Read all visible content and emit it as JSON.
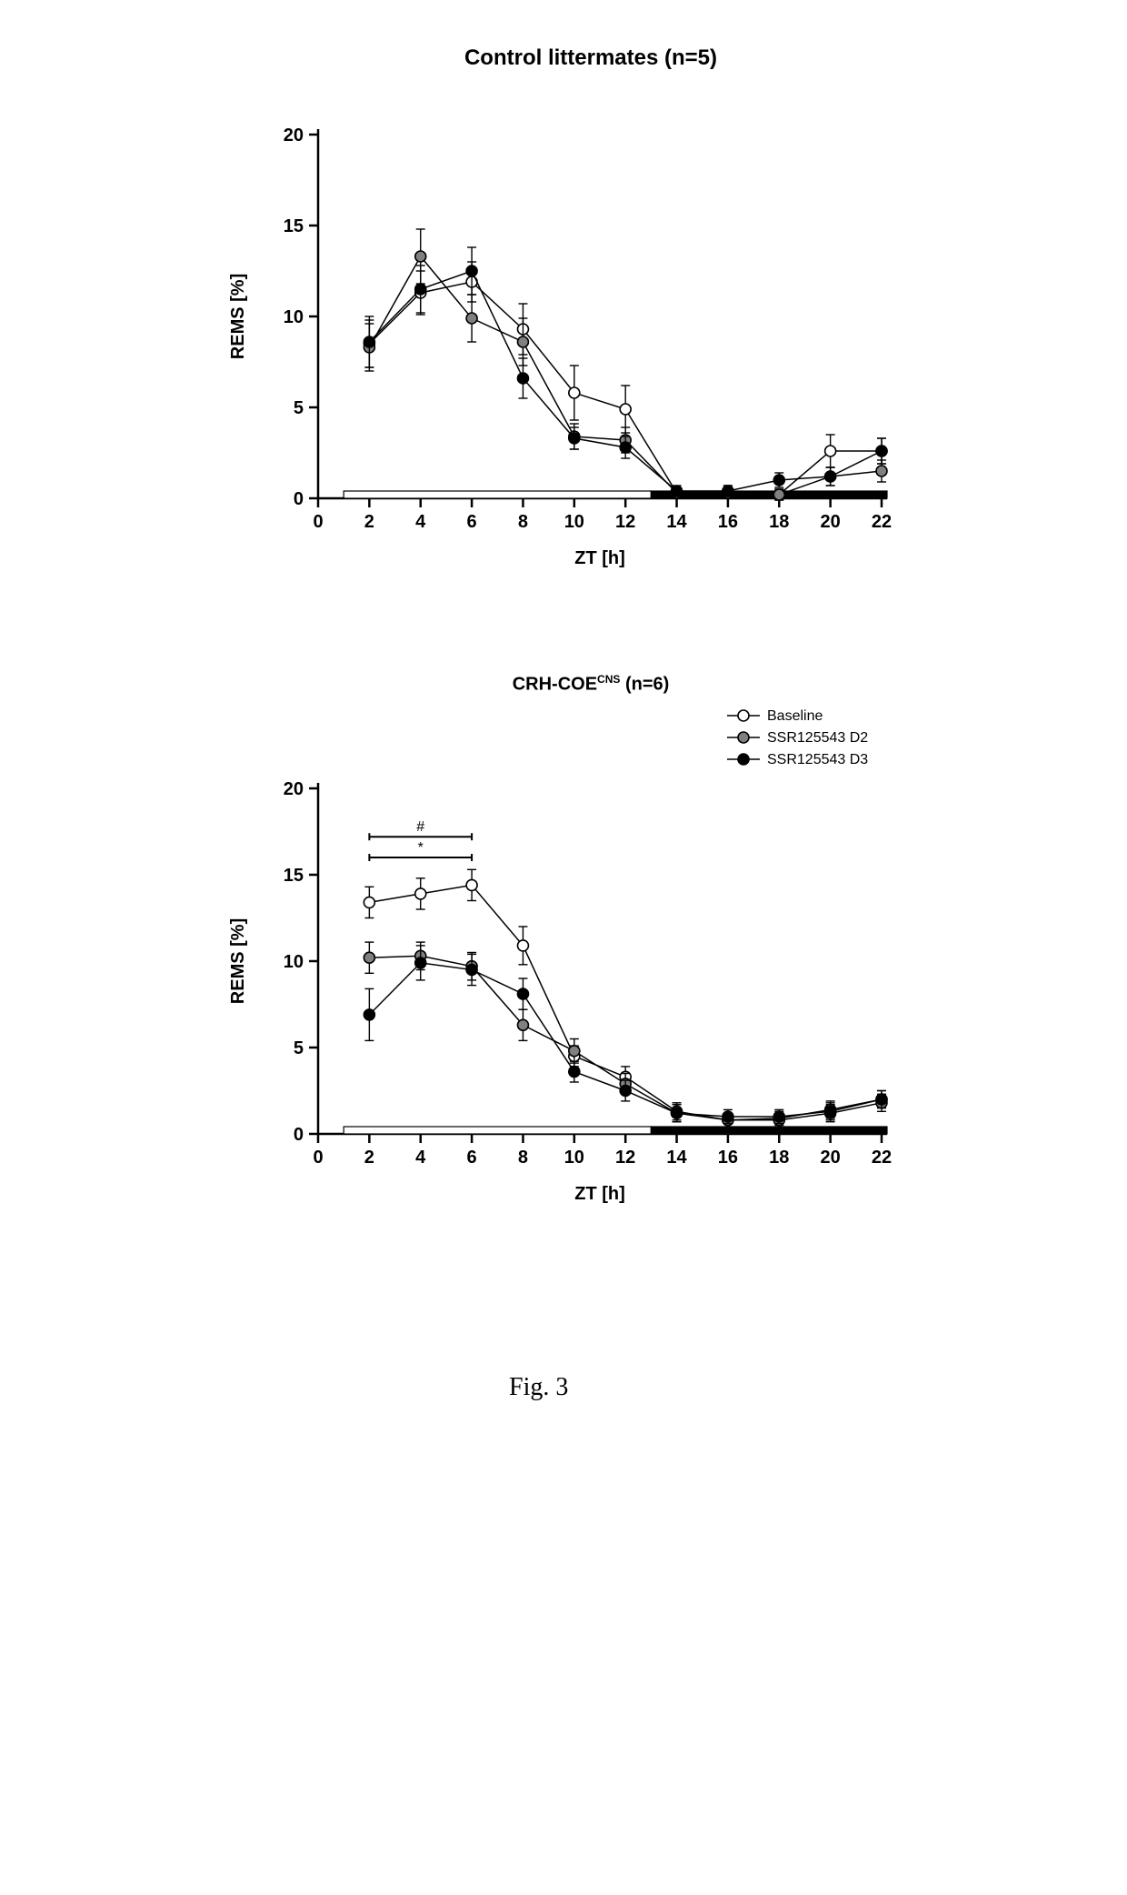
{
  "chart_top": {
    "title": "Control littermates (n=5)",
    "title_fontsize": 24,
    "title_fontweight": "bold",
    "type": "line_scatter_errorbar",
    "xlabel": "ZT [h]",
    "ylabel": "REMS [%]",
    "label_fontsize": 20,
    "label_fontweight": "bold",
    "tick_fontsize": 20,
    "tick_fontweight": "bold",
    "xlim": [
      0,
      22
    ],
    "ylim": [
      0,
      20
    ],
    "xticks": [
      0,
      2,
      4,
      6,
      8,
      10,
      12,
      14,
      16,
      18,
      20,
      22
    ],
    "yticks": [
      0,
      5,
      10,
      15,
      20
    ],
    "background_color": "#ffffff",
    "axis_color": "#000000",
    "line_width": 1.5,
    "marker_size": 6,
    "light_dark_bar": {
      "light_start": 1,
      "light_end": 13,
      "dark_end": 23
    },
    "series": [
      {
        "name": "Baseline",
        "color": "#000000",
        "fill": "#ffffff",
        "x": [
          2,
          4,
          6,
          8,
          10,
          12,
          14,
          16,
          18,
          20,
          22
        ],
        "y": [
          8.5,
          11.3,
          11.9,
          9.3,
          5.8,
          4.9,
          0.3,
          0.4,
          0.2,
          2.6,
          2.6
        ],
        "err": [
          1.3,
          1.2,
          1.1,
          1.4,
          1.5,
          1.3,
          0.3,
          0.3,
          0.3,
          0.9,
          0.7
        ]
      },
      {
        "name": "SSR125543 D2",
        "color": "#000000",
        "fill": "#808080",
        "x": [
          2,
          4,
          6,
          8,
          10,
          12,
          14,
          16,
          18,
          20,
          22
        ],
        "y": [
          8.3,
          13.3,
          9.9,
          8.6,
          3.4,
          3.2,
          0.3,
          0.3,
          0.2,
          1.2,
          1.5
        ],
        "err": [
          1.3,
          1.5,
          1.3,
          1.3,
          0.7,
          0.7,
          0.3,
          0.3,
          0.3,
          0.5,
          0.6
        ]
      },
      {
        "name": "SSR125543 D3",
        "color": "#000000",
        "fill": "#000000",
        "x": [
          2,
          4,
          6,
          8,
          10,
          12,
          14,
          16,
          18,
          20,
          22
        ],
        "y": [
          8.6,
          11.5,
          12.5,
          6.6,
          3.3,
          2.8,
          0.4,
          0.4,
          1.0,
          1.2,
          2.6
        ],
        "err": [
          1.4,
          1.3,
          1.3,
          1.1,
          0.6,
          0.6,
          0.3,
          0.3,
          0.4,
          0.5,
          0.7
        ]
      }
    ]
  },
  "chart_bottom": {
    "title": "CRH-COE",
    "title_super": "CNS",
    "title_suffix": " (n=6)",
    "title_fontsize": 20,
    "title_fontweight": "bold",
    "type": "line_scatter_errorbar",
    "xlabel": "ZT [h]",
    "ylabel": "REMS [%]",
    "label_fontsize": 20,
    "label_fontweight": "bold",
    "tick_fontsize": 20,
    "tick_fontweight": "bold",
    "xlim": [
      0,
      22
    ],
    "ylim": [
      0,
      20
    ],
    "xticks": [
      0,
      2,
      4,
      6,
      8,
      10,
      12,
      14,
      16,
      18,
      20,
      22
    ],
    "yticks": [
      0,
      5,
      10,
      15,
      20
    ],
    "background_color": "#ffffff",
    "axis_color": "#000000",
    "line_width": 1.5,
    "marker_size": 6,
    "light_dark_bar": {
      "light_start": 1,
      "light_end": 13,
      "dark_end": 23
    },
    "legend": {
      "position": "top-right",
      "fontsize": 16,
      "items": [
        {
          "label": "Baseline",
          "fill": "#ffffff",
          "stroke": "#000000"
        },
        {
          "label": "SSR125543 D2",
          "fill": "#808080",
          "stroke": "#000000"
        },
        {
          "label": "SSR125543 D3",
          "fill": "#000000",
          "stroke": "#000000"
        }
      ]
    },
    "significance": [
      {
        "symbol": "#",
        "x_start": 2,
        "x_end": 6,
        "y": 17.2,
        "symbol_offset_x": -30
      },
      {
        "symbol": "*",
        "x_start": 2,
        "x_end": 6,
        "y": 16.0,
        "symbol_offset_x": -30
      }
    ],
    "series": [
      {
        "name": "Baseline",
        "color": "#000000",
        "fill": "#ffffff",
        "x": [
          2,
          4,
          6,
          8,
          10,
          12,
          14,
          16,
          18,
          20,
          22
        ],
        "y": [
          13.4,
          13.9,
          14.4,
          10.9,
          4.5,
          3.3,
          1.3,
          0.8,
          0.9,
          1.4,
          2.0
        ],
        "err": [
          0.9,
          0.9,
          0.9,
          1.1,
          0.6,
          0.6,
          0.5,
          0.4,
          0.4,
          0.5,
          0.5
        ]
      },
      {
        "name": "SSR125543 D2",
        "color": "#000000",
        "fill": "#808080",
        "x": [
          2,
          4,
          6,
          8,
          10,
          12,
          14,
          16,
          18,
          20,
          22
        ],
        "y": [
          10.2,
          10.3,
          9.7,
          6.3,
          4.8,
          2.9,
          1.2,
          0.8,
          0.8,
          1.2,
          1.8
        ],
        "err": [
          0.9,
          0.8,
          0.8,
          0.9,
          0.7,
          0.6,
          0.5,
          0.4,
          0.4,
          0.5,
          0.5
        ]
      },
      {
        "name": "SSR125543 D3",
        "color": "#000000",
        "fill": "#000000",
        "x": [
          2,
          4,
          6,
          8,
          10,
          12,
          14,
          16,
          18,
          20,
          22
        ],
        "y": [
          6.9,
          9.9,
          9.5,
          8.1,
          3.6,
          2.5,
          1.2,
          1.0,
          1.0,
          1.3,
          2.0
        ],
        "err": [
          1.5,
          1.0,
          0.9,
          0.9,
          0.6,
          0.6,
          0.5,
          0.4,
          0.4,
          0.5,
          0.5
        ]
      }
    ]
  },
  "figure_label": "Fig. 3"
}
